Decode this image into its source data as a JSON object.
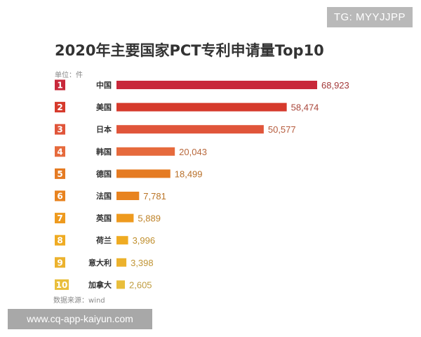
{
  "watermark": {
    "badge": "TG: MYYJJPP",
    "url": "www.cq-app-kaiyun.com"
  },
  "chart_data": {
    "type": "bar",
    "orientation": "horizontal",
    "title": "2020年主要国家PCT专利申请量Top10",
    "unit": "单位：件",
    "source": "数据来源：wind",
    "ranks": [
      "1",
      "2",
      "3",
      "4",
      "5",
      "6",
      "7",
      "8",
      "9",
      "10"
    ],
    "categories": [
      "中国",
      "美国",
      "日本",
      "韩国",
      "德国",
      "法国",
      "英国",
      "荷兰",
      "意大利",
      "加拿大"
    ],
    "values": [
      68923,
      58474,
      50577,
      20043,
      18499,
      7781,
      5889,
      3996,
      3398,
      2605
    ],
    "value_labels": [
      "68,923",
      "58,474",
      "50,577",
      "20,043",
      "18,499",
      "7,781",
      "5,889",
      "3,996",
      "3,398",
      "2,605"
    ],
    "colors": [
      "#c8283a",
      "#d63a2c",
      "#e0553a",
      "#e66a3c",
      "#e57b22",
      "#e8831f",
      "#ee9a1e",
      "#efab22",
      "#ecb22d",
      "#e9be3b"
    ],
    "label_colors": [
      "#a33a3a",
      "#a9463a",
      "#b55b3c",
      "#b8683c",
      "#b8702a",
      "#ba7426",
      "#be8228",
      "#c08f2e",
      "#c09434",
      "#bf9c3e"
    ]
  }
}
